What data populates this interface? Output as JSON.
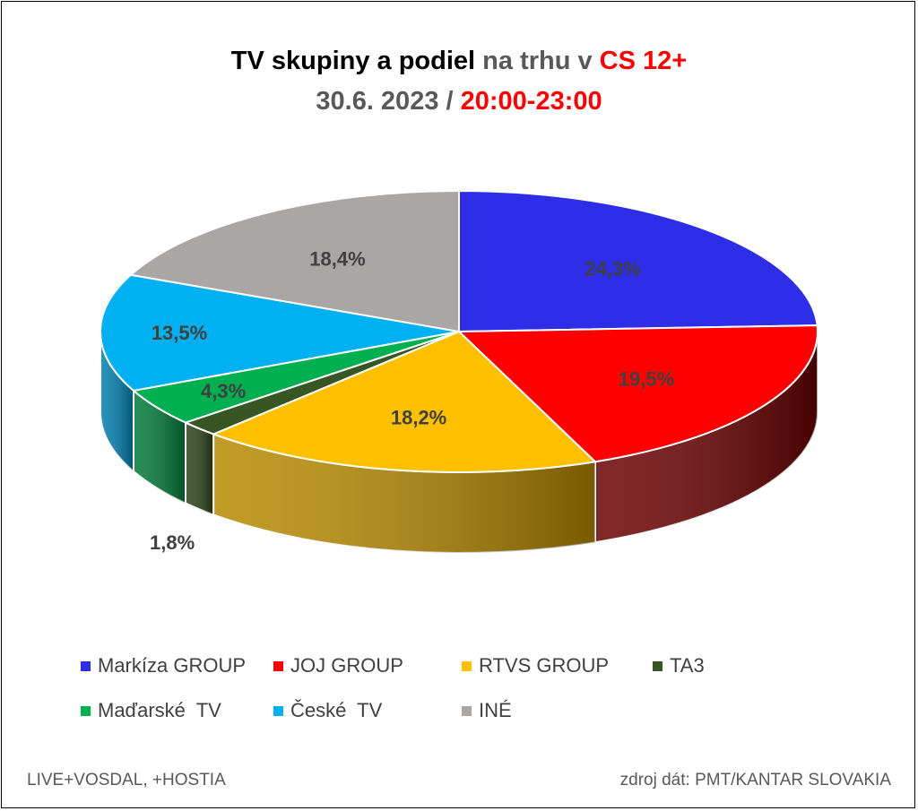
{
  "title": {
    "line1_part1": "TV skupiny a podiel",
    "line1_part2": " na trhu v ",
    "line1_part3": "CS 12+",
    "line2_part1": "30.6. 2023 / ",
    "line2_part2": "20:00-23:00"
  },
  "chart_data": {
    "type": "pie",
    "title": "TV skupiny a podiel na trhu v CS 12+ 30.6. 2023 / 20:00-23:00",
    "categories": [
      "Markíza GROUP",
      "JOJ GROUP",
      "RTVS GROUP",
      "TA3",
      "Maďarské  TV",
      "České  TV",
      "INÉ"
    ],
    "values": [
      24.3,
      19.5,
      18.2,
      1.8,
      4.3,
      13.5,
      18.4
    ],
    "labels": [
      "24,3%",
      "19,5%",
      "18,2%",
      "1,8%",
      "4,3%",
      "13,5%",
      "18,4%"
    ],
    "colors": [
      "#2e2ee8",
      "#ff0000",
      "#ffc000",
      "#375623",
      "#00b050",
      "#00b0f0",
      "#aba6a6"
    ],
    "side_colors": [
      "#1a1a8c",
      "#6b0000",
      "#b88a00",
      "#2b4219",
      "#007a38",
      "#0080b0",
      "#7f7b7b"
    ],
    "legend_position": "bottom",
    "is_3d": true
  },
  "legend": [
    "Markíza GROUP",
    "JOJ GROUP",
    "RTVS GROUP",
    "TA3",
    "Maďarské  TV",
    "České  TV",
    "INÉ"
  ],
  "footer": {
    "left": "LIVE+VOSDAL, +HOSTIA",
    "right": "zdroj dát: PMT/KANTAR SLOVAKIA"
  }
}
